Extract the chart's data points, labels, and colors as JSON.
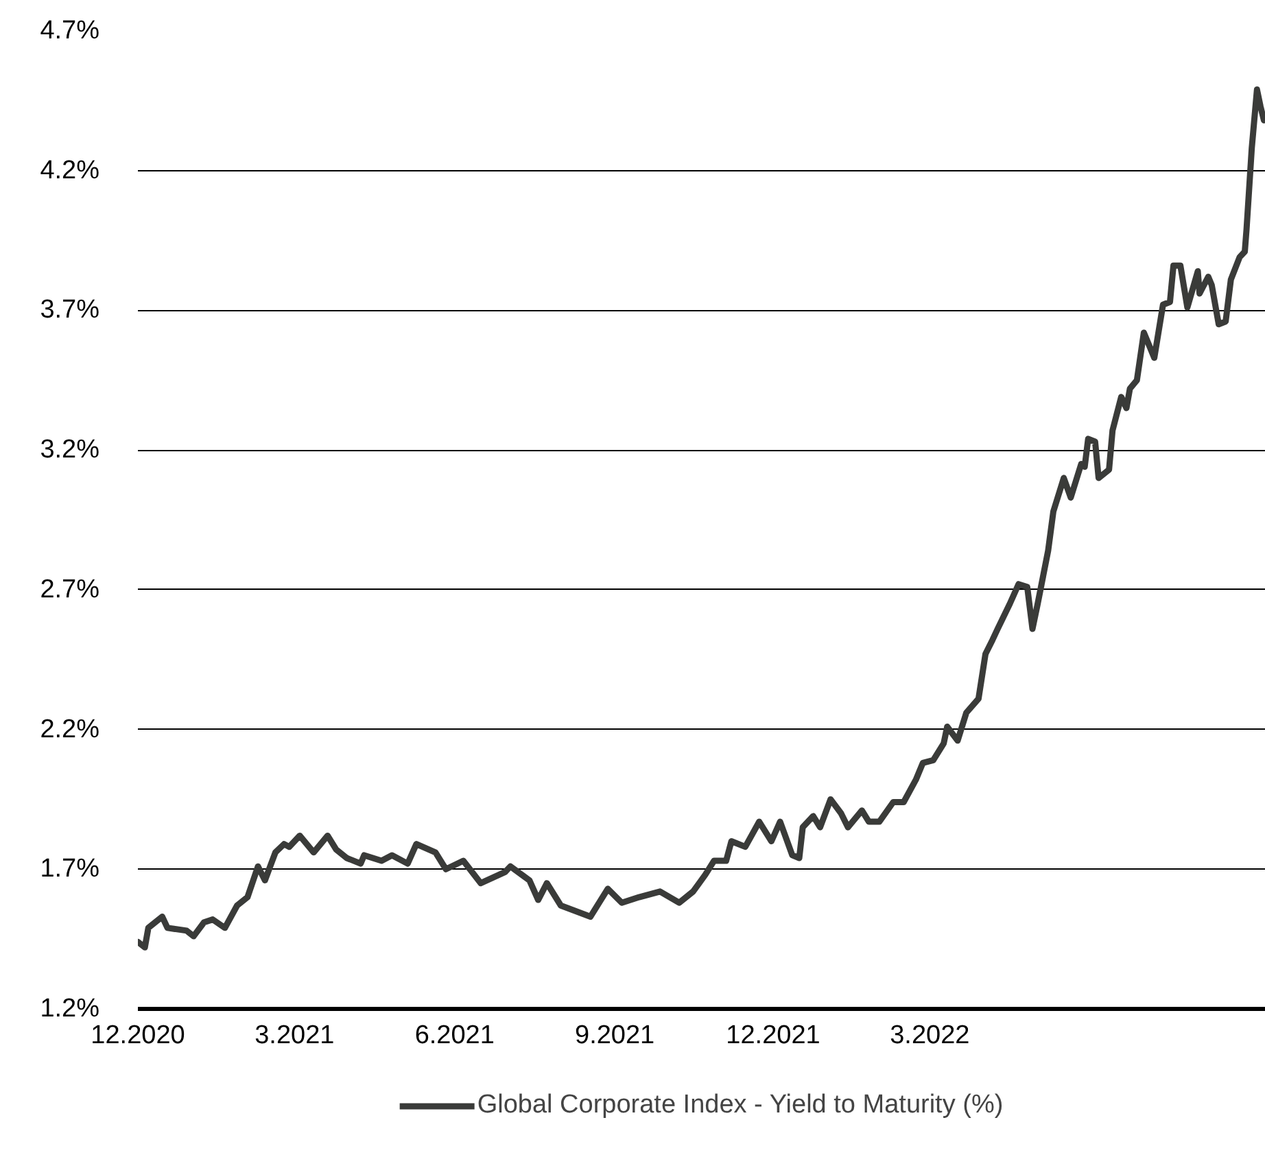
{
  "chart_data": {
    "type": "line",
    "x": [
      "2020-12-01",
      "2020-12-05",
      "2020-12-07",
      "2020-12-15",
      "2020-12-18",
      "2020-12-29",
      "2021-01-02",
      "2021-01-08",
      "2021-01-13",
      "2021-01-20",
      "2021-01-27",
      "2021-02-02",
      "2021-02-08",
      "2021-02-12",
      "2021-02-18",
      "2021-02-23",
      "2021-02-26",
      "2021-03-04",
      "2021-03-12",
      "2021-03-20",
      "2021-03-25",
      "2021-03-31",
      "2021-04-08",
      "2021-04-10",
      "2021-04-20",
      "2021-04-26",
      "2021-05-05",
      "2021-05-10",
      "2021-05-21",
      "2021-05-27",
      "2021-06-06",
      "2021-06-16",
      "2021-06-30",
      "2021-07-03",
      "2021-07-14",
      "2021-07-19",
      "2021-07-24",
      "2021-08-01",
      "2021-08-18",
      "2021-08-28",
      "2021-09-05",
      "2021-09-15",
      "2021-09-27",
      "2021-10-08",
      "2021-10-16",
      "2021-10-23",
      "2021-10-28",
      "2021-11-04",
      "2021-11-07",
      "2021-11-15",
      "2021-11-23",
      "2021-11-30",
      "2021-12-05",
      "2021-12-12",
      "2021-12-16",
      "2021-12-18",
      "2021-12-24",
      "2021-12-28",
      "2022-01-03",
      "2022-01-09",
      "2022-01-13",
      "2022-01-21",
      "2022-01-25",
      "2022-01-31",
      "2022-02-08",
      "2022-02-14",
      "2022-02-21",
      "2022-02-25",
      "2022-03-03",
      "2022-03-09",
      "2022-03-11",
      "2022-03-17",
      "2022-03-22",
      "2022-03-29",
      "2022-04-02",
      "2022-04-06",
      "2022-04-09",
      "2022-04-16",
      "2022-04-21",
      "2022-04-26",
      "2022-04-29",
      "2022-05-02",
      "2022-05-08",
      "2022-05-11",
      "2022-05-17",
      "2022-05-21",
      "2022-05-27",
      "2022-05-29",
      "2022-05-31",
      "2022-06-04",
      "2022-06-06",
      "2022-06-12",
      "2022-06-14",
      "2022-06-19",
      "2022-06-22",
      "2022-06-24",
      "2022-06-28",
      "2022-07-02",
      "2022-07-08",
      "2022-07-13",
      "2022-07-17",
      "2022-07-19",
      "2022-07-23",
      "2022-07-27",
      "2022-08-02",
      "2022-08-03",
      "2022-08-08",
      "2022-08-10",
      "2022-08-14",
      "2022-08-18",
      "2022-08-21",
      "2022-08-26",
      "2022-08-29",
      "2022-08-30",
      "2022-09-02",
      "2022-09-05",
      "2022-09-07",
      "2022-09-09"
    ],
    "series": [
      {
        "name": "Global Corporate Index - Yield to Maturity (%)",
        "color": "#3a3b39",
        "values": [
          1.44,
          1.42,
          1.49,
          1.53,
          1.49,
          1.48,
          1.46,
          1.51,
          1.52,
          1.49,
          1.57,
          1.6,
          1.71,
          1.66,
          1.76,
          1.79,
          1.78,
          1.82,
          1.76,
          1.82,
          1.77,
          1.74,
          1.72,
          1.75,
          1.73,
          1.75,
          1.72,
          1.79,
          1.76,
          1.7,
          1.73,
          1.65,
          1.69,
          1.71,
          1.66,
          1.59,
          1.65,
          1.57,
          1.53,
          1.63,
          1.58,
          1.6,
          1.62,
          1.58,
          1.62,
          1.68,
          1.73,
          1.73,
          1.8,
          1.78,
          1.87,
          1.8,
          1.87,
          1.75,
          1.74,
          1.85,
          1.89,
          1.85,
          1.95,
          1.9,
          1.85,
          1.91,
          1.87,
          1.87,
          1.94,
          1.94,
          2.02,
          2.08,
          2.09,
          2.15,
          2.21,
          2.16,
          2.26,
          2.31,
          2.47,
          2.52,
          2.56,
          2.65,
          2.72,
          2.71,
          2.56,
          2.65,
          2.84,
          2.98,
          3.1,
          3.03,
          3.15,
          3.14,
          3.24,
          3.23,
          3.1,
          3.13,
          3.27,
          3.39,
          3.35,
          3.42,
          3.45,
          3.62,
          3.53,
          3.72,
          3.73,
          3.86,
          3.86,
          3.71,
          3.84,
          3.76,
          3.82,
          3.79,
          3.65,
          3.66,
          3.81,
          3.89,
          3.91,
          3.99,
          4.28,
          4.49,
          4.43,
          4.38
        ]
      }
    ],
    "xlim": [
      "2020-12-01",
      "2022-09-10"
    ],
    "xticks": [
      {
        "value": "2020-12-01",
        "label": "12.2020"
      },
      {
        "value": "2021-03-01",
        "label": "3.2021"
      },
      {
        "value": "2021-06-01",
        "label": "6.2021"
      },
      {
        "value": "2021-09-01",
        "label": "9.2021"
      },
      {
        "value": "2021-12-01",
        "label": "12.2021"
      },
      {
        "value": "2022-03-01",
        "label": "3.2022"
      }
    ],
    "ylim": [
      1.2,
      4.7
    ],
    "yticks": [
      {
        "value": 1.2,
        "label": "1.2%"
      },
      {
        "value": 1.7,
        "label": "1.7%"
      },
      {
        "value": 2.2,
        "label": "2.2%"
      },
      {
        "value": 2.7,
        "label": "2.7%"
      },
      {
        "value": 3.2,
        "label": "3.2%"
      },
      {
        "value": 3.7,
        "label": "3.7%"
      },
      {
        "value": 4.2,
        "label": "4.2%"
      },
      {
        "value": 4.7,
        "label": "4.7%"
      }
    ],
    "grid": "y",
    "legend": "bottom",
    "line_style": "solid"
  }
}
